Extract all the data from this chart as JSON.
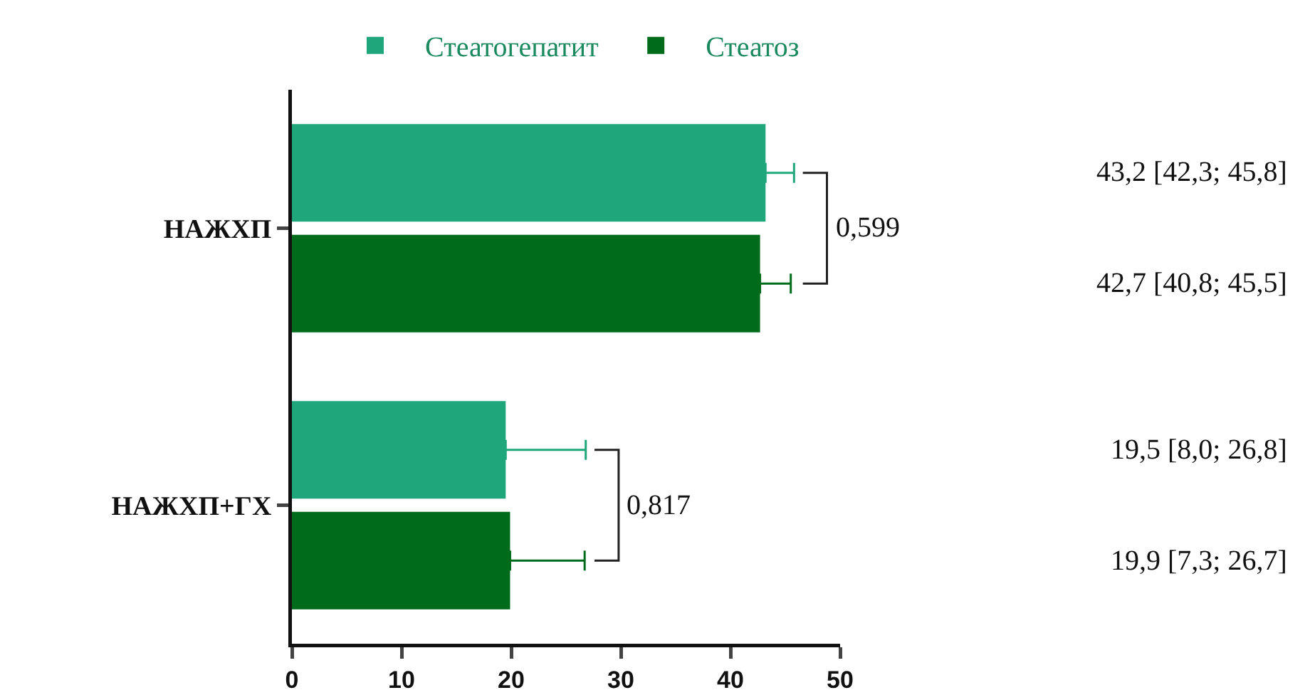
{
  "chart_data": {
    "type": "bar",
    "orientation": "horizontal",
    "categories": [
      "НАЖХП",
      "НАЖХП+ГХ"
    ],
    "series": [
      {
        "name": "Стеатогепатит",
        "color": "#1fa67a",
        "values": [
          43.2,
          19.5
        ],
        "errors": [
          [
            43.2,
            45.8
          ],
          [
            19.5,
            26.8
          ]
        ]
      },
      {
        "name": "Стеатоз",
        "color": "#006b1a",
        "values": [
          42.7,
          19.9
        ],
        "errors": [
          [
            42.7,
            45.5
          ],
          [
            19.9,
            26.7
          ]
        ]
      }
    ],
    "xlim": [
      0,
      50
    ],
    "xticks": [
      0,
      10,
      20,
      30,
      40,
      50
    ],
    "annotations": [
      "0,599",
      "0,817",
      "43,2 [42,3; 45,8]",
      "42,7 [40,8; 45,5]",
      "19,5 [8,0; 26,8]",
      "19,9 [7,3; 26,7]"
    ],
    "grid": false,
    "legend": "top"
  }
}
